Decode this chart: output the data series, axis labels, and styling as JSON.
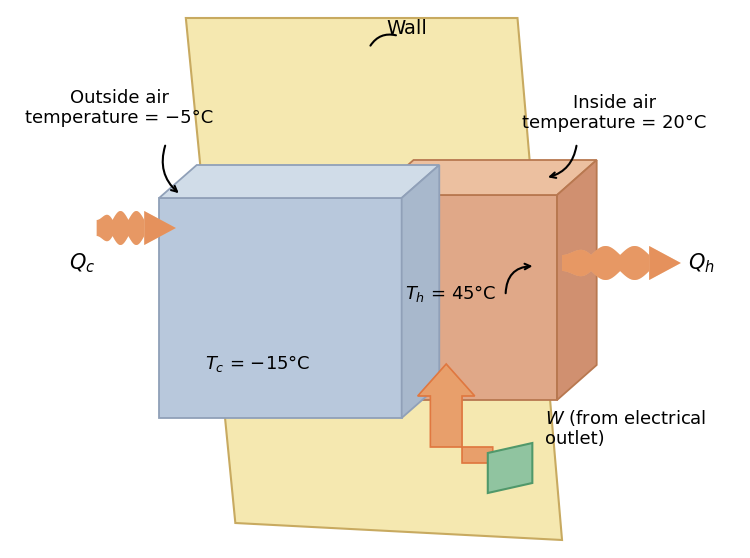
{
  "bg_color": "#ffffff",
  "wall_color": "#f5e8b0",
  "wall_edge_color": "#c8aa60",
  "cold_front_color": "#b8c8dc",
  "cold_top_color": "#d0dce8",
  "cold_side_color": "#a8b8cc",
  "cold_edge": "#90a0b8",
  "hot_front_color": "#e0a888",
  "hot_top_color": "#ecc0a0",
  "hot_side_color": "#d09070",
  "hot_edge": "#b87850",
  "arrow_color": "#e07840",
  "arrow_light": "#f0c090",
  "outlet_color": "#90c4a0",
  "outlet_edge": "#50986a",
  "wall_label": "Wall",
  "outside_label": "Outside air\ntemperature = −5°C",
  "inside_label": "Inside air\ntemperature = 20°C",
  "Tc_label": "$T_c$ = −15°C",
  "Th_label": "$T_h$ = 45°C",
  "Qc_label": "$Q_c$",
  "Qh_label": "$Q_h$",
  "W_label": "$W$ (from electrical\noutlet)",
  "fs_main": 13,
  "fs_label": 14,
  "fs_sub": 13
}
